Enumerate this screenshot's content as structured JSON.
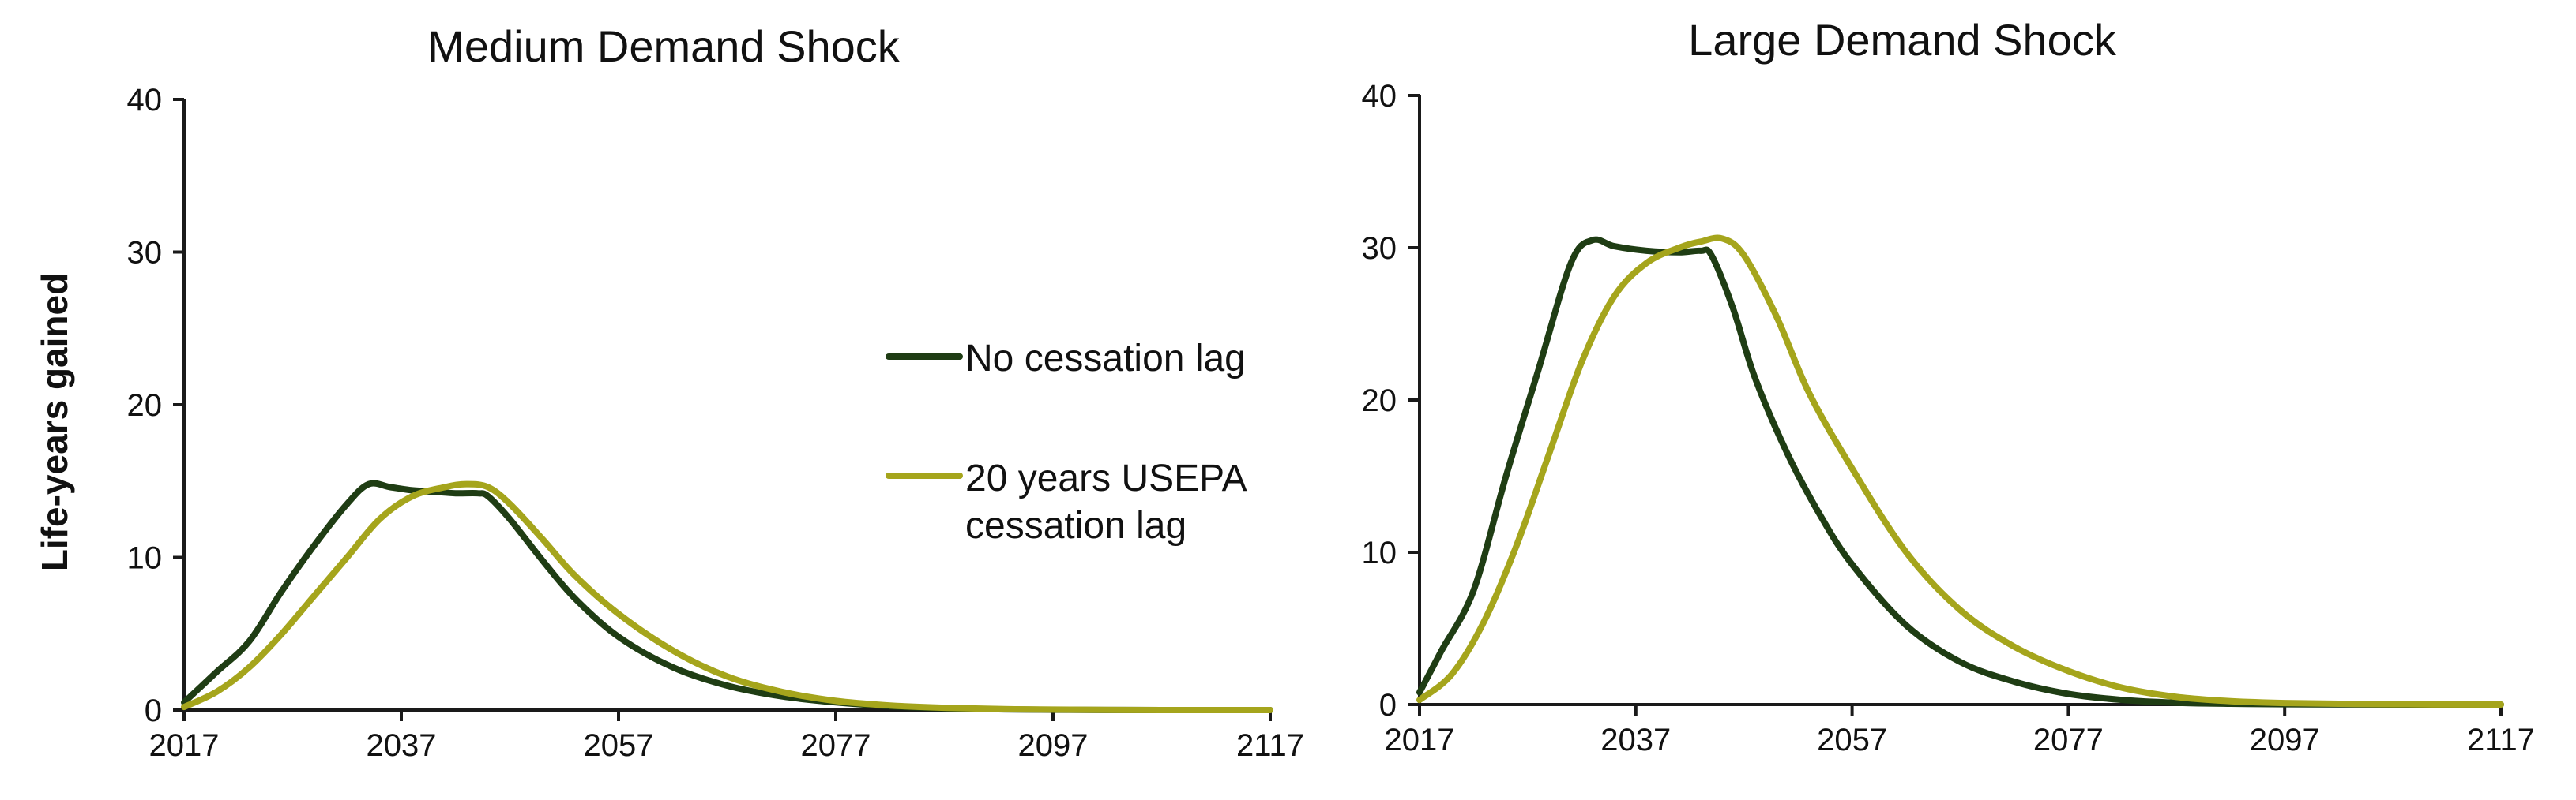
{
  "chart_data": [
    {
      "type": "line",
      "title": "Medium Demand Shock",
      "ylabel": "Life-years gained",
      "xlabel": "",
      "xlim": [
        2017,
        2117
      ],
      "ylim": [
        0,
        40
      ],
      "xticks": [
        "2017",
        "2037",
        "2057",
        "2077",
        "2097",
        "2117"
      ],
      "yticks": [
        "0",
        "10",
        "20",
        "30",
        "40"
      ],
      "grid": false,
      "legend": "right",
      "series": [
        {
          "name": "No cessation lag",
          "color": "#1f3d14",
          "x": [
            2017,
            2020,
            2023,
            2026,
            2029,
            2032,
            2034,
            2036,
            2038,
            2040,
            2042,
            2044,
            2045,
            2047,
            2050,
            2053,
            2057,
            2062,
            2067,
            2072,
            2077,
            2082,
            2087,
            2092,
            2097,
            2107,
            2117
          ],
          "y": [
            0.5,
            2.5,
            4.5,
            7.8,
            10.8,
            13.5,
            14.8,
            14.6,
            14.4,
            14.3,
            14.2,
            14.2,
            14.0,
            12.5,
            9.8,
            7.3,
            4.8,
            2.8,
            1.6,
            0.9,
            0.5,
            0.25,
            0.12,
            0.05,
            0.02,
            0.0,
            0.0
          ]
        },
        {
          "name": "20 years USEPA cessation lag",
          "color": "#a5a51c",
          "x": [
            2017,
            2020,
            2023,
            2026,
            2029,
            2032,
            2035,
            2038,
            2041,
            2043,
            2045,
            2047,
            2050,
            2053,
            2057,
            2062,
            2067,
            2072,
            2077,
            2082,
            2087,
            2092,
            2097,
            2107,
            2117
          ],
          "y": [
            0.2,
            1.2,
            2.8,
            5.0,
            7.5,
            10.0,
            12.5,
            14.0,
            14.6,
            14.8,
            14.6,
            13.5,
            11.2,
            8.8,
            6.3,
            3.9,
            2.2,
            1.2,
            0.6,
            0.3,
            0.15,
            0.07,
            0.03,
            0.0,
            0.0
          ]
        }
      ]
    },
    {
      "type": "line",
      "title": "Large Demand Shock",
      "ylabel": "",
      "xlabel": "",
      "xlim": [
        2017,
        2117
      ],
      "ylim": [
        0,
        40
      ],
      "xticks": [
        "2017",
        "2037",
        "2057",
        "2077",
        "2097",
        "2117"
      ],
      "yticks": [
        "0",
        "10",
        "20",
        "30",
        "40"
      ],
      "grid": false,
      "series": [
        {
          "name": "No cessation lag",
          "color": "#1f3d14",
          "x": [
            2017,
            2019,
            2022,
            2025,
            2028,
            2031,
            2033,
            2035,
            2038,
            2041,
            2043,
            2044,
            2046,
            2048,
            2051,
            2054,
            2057,
            2062,
            2067,
            2072,
            2077,
            2082,
            2087,
            2092,
            2097,
            2107,
            2117
          ],
          "y": [
            0.8,
            3.5,
            7.5,
            15.0,
            22.0,
            29.0,
            30.5,
            30.1,
            29.8,
            29.7,
            29.8,
            29.5,
            26.0,
            21.5,
            16.5,
            12.5,
            9.2,
            5.2,
            2.8,
            1.5,
            0.7,
            0.3,
            0.12,
            0.05,
            0.02,
            0.0,
            0.0
          ]
        },
        {
          "name": "20 years USEPA cessation lag",
          "color": "#a5a51c",
          "x": [
            2017,
            2020,
            2023,
            2026,
            2029,
            2032,
            2035,
            2038,
            2041,
            2043,
            2045,
            2047,
            2050,
            2053,
            2057,
            2062,
            2067,
            2072,
            2077,
            2082,
            2087,
            2092,
            2097,
            2107,
            2117
          ],
          "y": [
            0.3,
            2.0,
            5.5,
            10.5,
            16.5,
            22.5,
            26.8,
            29.0,
            30.0,
            30.4,
            30.6,
            29.5,
            25.5,
            20.5,
            15.5,
            10.0,
            6.2,
            3.8,
            2.2,
            1.1,
            0.5,
            0.22,
            0.1,
            0.02,
            0.0
          ]
        }
      ]
    }
  ]
}
